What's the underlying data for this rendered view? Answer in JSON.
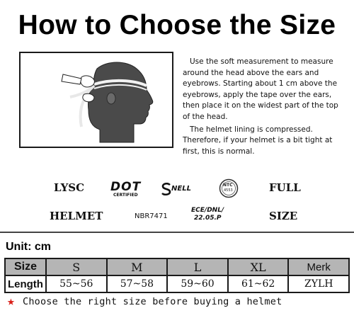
{
  "title": "How to Choose the Size",
  "instructions": [
    "Use the soft measurement to measure around the head above the ears and eyebrows. Starting about 1 cm above the eyebrows, apply the tape over the ears, then place it on the widest part of the top of the head.",
    "The helmet lining is compressed. Therefore, if your helmet is a bit tight at first, this is normal."
  ],
  "logos": {
    "lysc": "LYSC",
    "dot": "DOT",
    "dot_sub": "CERTIFIED",
    "snell": "NELL",
    "ntc_top": "NTC",
    "ntc_sub": "4553",
    "full": "FULL",
    "helmet": "HELMET",
    "nbr": "NBR7471",
    "ece_line1": "ECE/DNL/",
    "ece_line2": "22.05.P",
    "size": "SIZE"
  },
  "unit_label": "Unit: cm",
  "table": {
    "header": [
      "Size",
      "S",
      "M",
      "L",
      "XL",
      "Merk"
    ],
    "row": [
      "Length",
      "55~56",
      "57~58",
      "59~60",
      "61~62",
      "ZYLH"
    ]
  },
  "footer": {
    "star_icon": "red-star-icon",
    "text": "Choose the right size before buying a helmet",
    "star_color": "#d91e18"
  }
}
